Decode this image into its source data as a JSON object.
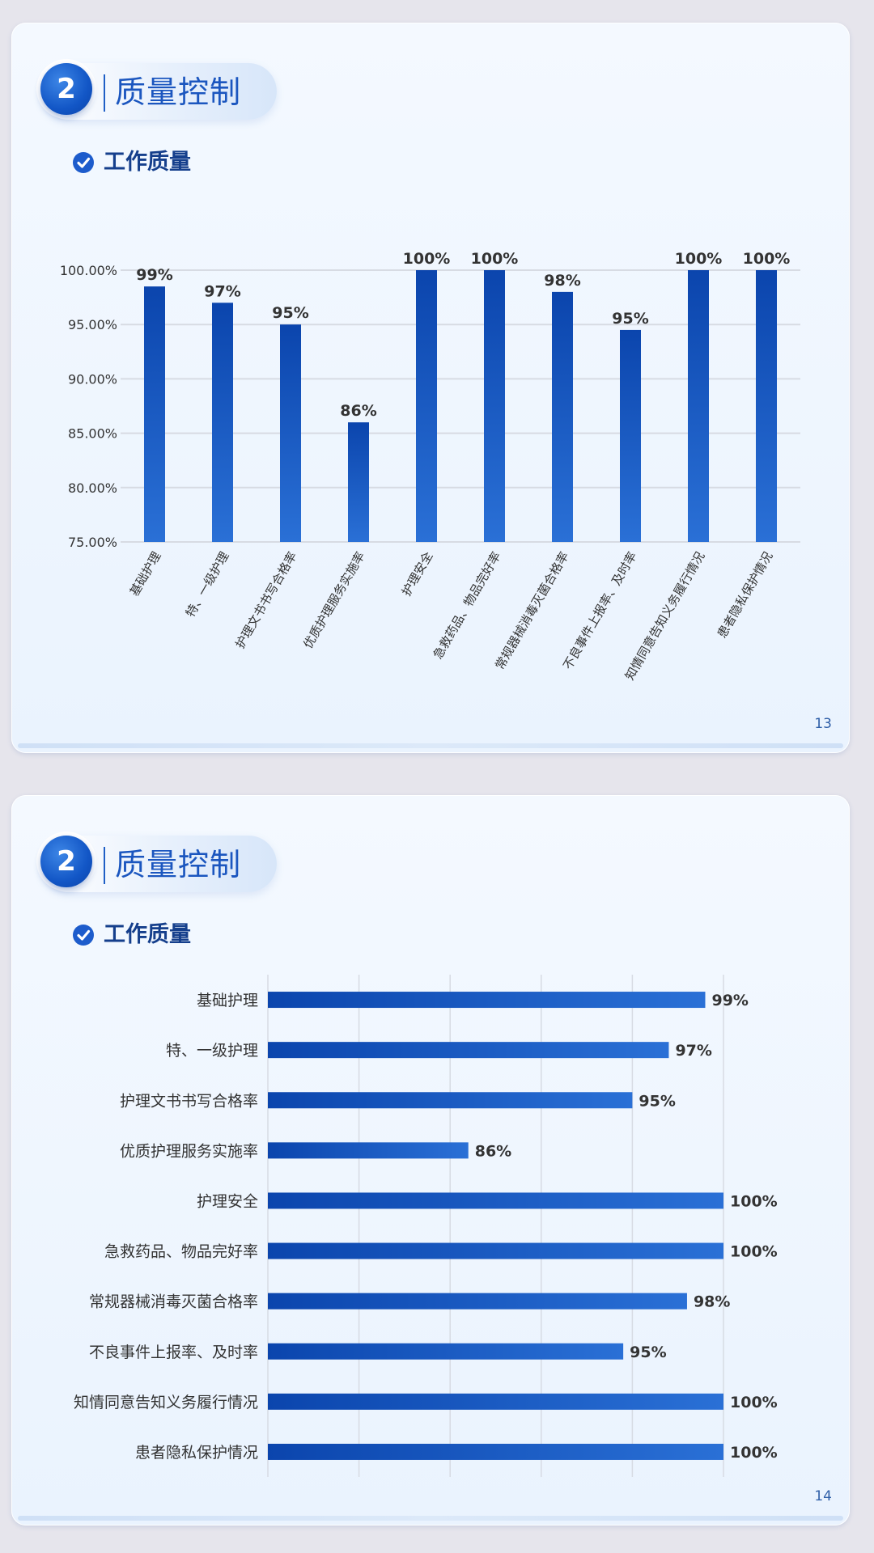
{
  "slides": [
    {
      "section_number": "2",
      "section_title": "质量控制",
      "subtitle": "工作质量",
      "page_number": "13"
    },
    {
      "section_number": "2",
      "section_title": "质量控制",
      "subtitle": "工作质量",
      "page_number": "14"
    }
  ],
  "colors": {
    "bar_dark": "#0b45ad",
    "bar_light": "#2a70d6",
    "grid": "#d7dbe3",
    "text": "#333333"
  },
  "icons": [
    "check-circle-icon"
  ],
  "chart_data": [
    {
      "type": "bar",
      "orientation": "vertical",
      "categories": [
        "基础护理",
        "特、一级护理",
        "护理文书书写合格率",
        "优质护理服务实施率",
        "护理安全",
        "急救药品、物品完好率",
        "常规器械消毒灭菌合格率",
        "不良事件上报率、及时率",
        "知情同意告知义务履行情况",
        "患者隐私保护情况"
      ],
      "values": [
        98.5,
        97,
        95,
        86,
        100,
        100,
        98,
        94.5,
        100,
        100
      ],
      "data_labels": [
        "99%",
        "97%",
        "95%",
        "86%",
        "100%",
        "100%",
        "98%",
        "95%",
        "100%",
        "100%"
      ],
      "ylim": [
        75,
        100
      ],
      "yticks": [
        75,
        80,
        85,
        90,
        95,
        100
      ],
      "ytick_labels": [
        "75.00%",
        "80.00%",
        "85.00%",
        "90.00%",
        "95.00%",
        "100.00%"
      ],
      "grid": true
    },
    {
      "type": "bar",
      "orientation": "horizontal",
      "categories": [
        "基础护理",
        "特、一级护理",
        "护理文书书写合格率",
        "优质护理服务实施率",
        "护理安全",
        "急救药品、物品完好率",
        "常规器械消毒灭菌合格率",
        "不良事件上报率、及时率",
        "知情同意告知义务履行情况",
        "患者隐私保护情况"
      ],
      "values": [
        99,
        97,
        95,
        86,
        100,
        100,
        98,
        94.5,
        100,
        100
      ],
      "data_labels": [
        "99%",
        "97%",
        "95%",
        "86%",
        "100%",
        "100%",
        "98%",
        "95%",
        "100%",
        "100%"
      ],
      "xlim": [
        75,
        100
      ],
      "grid": true
    }
  ]
}
